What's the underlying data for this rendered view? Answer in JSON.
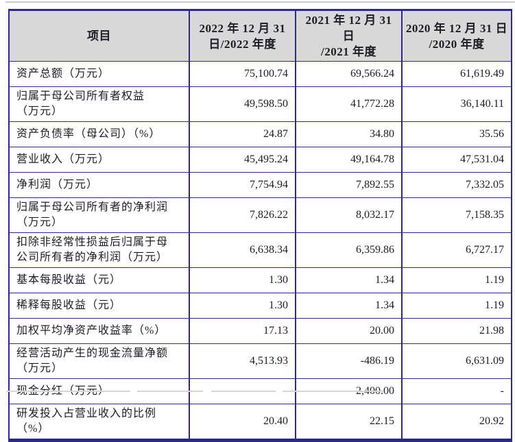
{
  "colors": {
    "border": "#2b2b85",
    "header_bg": "#d8d8d8",
    "text": "#1c1c26",
    "top_rule": "#cdcdcd"
  },
  "table": {
    "columns": [
      {
        "label_line1": "项目",
        "label_line2": ""
      },
      {
        "label_line1": "2022 年 12 月 31",
        "label_line2": "日/2022 年度"
      },
      {
        "label_line1": "2021 年 12 月 31 日",
        "label_line2": "/2021 年度"
      },
      {
        "label_line1": "2020 年 12 月 31 日",
        "label_line2": "/2020 年度"
      }
    ],
    "rows": [
      {
        "label": "资产总额（万元）",
        "v2022": "75,100.74",
        "v2021": "69,566.24",
        "v2020": "61,619.49"
      },
      {
        "label": "归属于母公司所有者权益\n（万元）",
        "v2022": "49,598.50",
        "v2021": "41,772.28",
        "v2020": "36,140.11"
      },
      {
        "label": "资产负债率（母公司）（%）",
        "v2022": "24.87",
        "v2021": "34.80",
        "v2020": "35.56"
      },
      {
        "label": "营业收入（万元）",
        "v2022": "45,495.24",
        "v2021": "49,164.78",
        "v2020": "47,531.04"
      },
      {
        "label": "净利润（万元）",
        "v2022": "7,754.94",
        "v2021": "7,892.55",
        "v2020": "7,332.05"
      },
      {
        "label": "归属于母公司所有者的净利润\n（万元）",
        "v2022": "7,826.22",
        "v2021": "8,032.17",
        "v2020": "7,158.35"
      },
      {
        "label": "扣除非经常性损益后归属于母\n公司所有者的净利润（万元）",
        "v2022": "6,638.34",
        "v2021": "6,359.86",
        "v2020": "6,727.17"
      },
      {
        "label": "基本每股收益（元）",
        "v2022": "1.30",
        "v2021": "1.34",
        "v2020": "1.19"
      },
      {
        "label": "稀释每股收益（元）",
        "v2022": "1.30",
        "v2021": "1.34",
        "v2020": "1.19"
      },
      {
        "label": "加权平均净资产收益率（%）",
        "v2022": "17.13",
        "v2021": "20.00",
        "v2020": "21.98"
      },
      {
        "label": "经营活动产生的现金流量净额\n（万元）",
        "v2022": "4,513.93",
        "v2021": "-486.19",
        "v2020": "6,631.09"
      },
      {
        "label": "现金分红（万元）",
        "v2022": "-",
        "v2021": "2,400.00",
        "v2020": "-"
      },
      {
        "label": "研发投入占营业收入的比例\n（%）",
        "v2022": "20.40",
        "v2021": "22.15",
        "v2020": "20.92"
      }
    ]
  }
}
